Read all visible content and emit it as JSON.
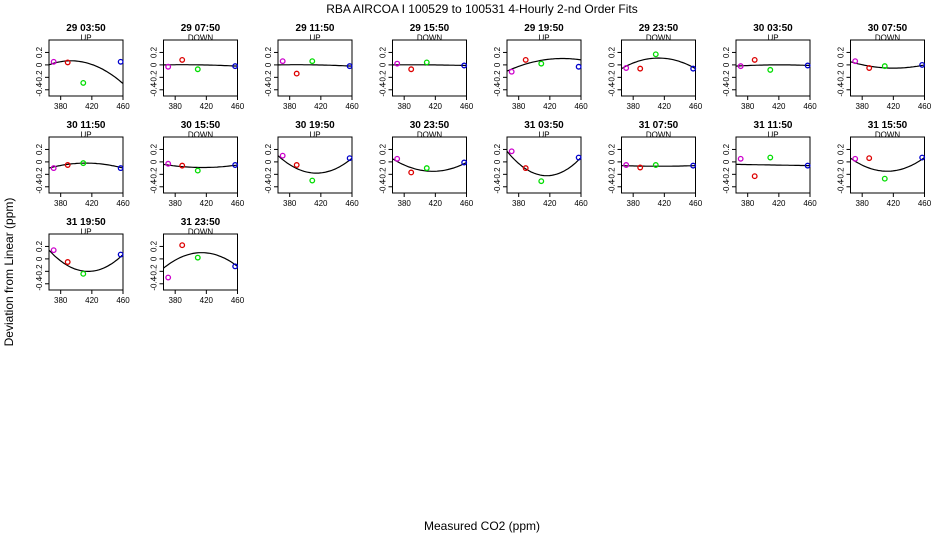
{
  "title": "RBA   AIRCOA I   100529 to 100531   4-Hourly 2-nd Order Fits",
  "xlabel": "Measured CO2 (ppm)",
  "ylabel": "Deviation from Linear (ppm)",
  "colors": {
    "purple": "#cc00cc",
    "red": "#dd0000",
    "green": "#00dd00",
    "blue": "#0000cc",
    "curve": "#000000"
  },
  "chart_data": {
    "type": "scatter",
    "xlim": [
      365,
      460
    ],
    "ylim": [
      -0.5,
      0.4
    ],
    "xticks": [
      380,
      420,
      460
    ],
    "yticks": [
      -0.4,
      -0.2,
      0,
      0.2
    ],
    "panels": [
      {
        "time": "29 03:50",
        "mode": "UP",
        "points": [
          {
            "x": 371,
            "y": 0.05
          },
          {
            "x": 389,
            "y": 0.04
          },
          {
            "x": 409,
            "y": -0.29
          },
          {
            "x": 457,
            "y": 0.05
          }
        ],
        "fit": [
          0.001,
          0.035,
          -0.3
        ]
      },
      {
        "time": "29 07:50",
        "mode": "DOWN",
        "points": [
          {
            "x": 371,
            "y": -0.03
          },
          {
            "x": 389,
            "y": 0.08
          },
          {
            "x": 409,
            "y": -0.07
          },
          {
            "x": 457,
            "y": -0.02
          }
        ],
        "fit": [
          0.0,
          0.0,
          -0.02
        ]
      },
      {
        "time": "29 11:50",
        "mode": "UP",
        "points": [
          {
            "x": 371,
            "y": 0.06
          },
          {
            "x": 389,
            "y": -0.14
          },
          {
            "x": 409,
            "y": 0.06
          },
          {
            "x": 457,
            "y": -0.02
          }
        ],
        "fit": [
          0.0,
          0.0,
          -0.02
        ]
      },
      {
        "time": "29 15:50",
        "mode": "DOWN",
        "points": [
          {
            "x": 371,
            "y": 0.02
          },
          {
            "x": 389,
            "y": -0.07
          },
          {
            "x": 409,
            "y": 0.04
          },
          {
            "x": 457,
            "y": -0.01
          }
        ],
        "fit": [
          0.0,
          0.0,
          -0.01
        ]
      },
      {
        "time": "29 19:50",
        "mode": "UP",
        "points": [
          {
            "x": 371,
            "y": -0.11
          },
          {
            "x": 389,
            "y": 0.08
          },
          {
            "x": 409,
            "y": 0.02
          },
          {
            "x": 457,
            "y": -0.03
          }
        ],
        "fit": [
          -0.1,
          0.08,
          0.08
        ]
      },
      {
        "time": "29 23:50",
        "mode": "DOWN",
        "points": [
          {
            "x": 371,
            "y": -0.05
          },
          {
            "x": 389,
            "y": -0.06
          },
          {
            "x": 409,
            "y": 0.17
          },
          {
            "x": 457,
            "y": -0.06
          }
        ],
        "fit": [
          -0.06,
          0.11,
          -0.06
        ]
      },
      {
        "time": "30 03:50",
        "mode": "UP",
        "points": [
          {
            "x": 371,
            "y": -0.02
          },
          {
            "x": 389,
            "y": 0.08
          },
          {
            "x": 409,
            "y": -0.08
          },
          {
            "x": 457,
            "y": -0.01
          }
        ],
        "fit": [
          -0.02,
          0.0,
          -0.01
        ]
      },
      {
        "time": "30 07:50",
        "mode": "DOWN",
        "points": [
          {
            "x": 371,
            "y": 0.06
          },
          {
            "x": 389,
            "y": -0.05
          },
          {
            "x": 409,
            "y": -0.02
          },
          {
            "x": 457,
            "y": 0.0
          }
        ],
        "fit": [
          0.05,
          -0.05,
          0.0
        ]
      },
      {
        "time": "30 11:50",
        "mode": "UP",
        "points": [
          {
            "x": 371,
            "y": -0.1
          },
          {
            "x": 389,
            "y": -0.05
          },
          {
            "x": 409,
            "y": -0.02
          },
          {
            "x": 457,
            "y": -0.1
          }
        ],
        "fit": [
          -0.1,
          -0.02,
          -0.1
        ]
      },
      {
        "time": "30 15:50",
        "mode": "DOWN",
        "points": [
          {
            "x": 371,
            "y": -0.03
          },
          {
            "x": 389,
            "y": -0.06
          },
          {
            "x": 409,
            "y": -0.14
          },
          {
            "x": 457,
            "y": -0.05
          }
        ],
        "fit": [
          -0.04,
          -0.09,
          -0.05
        ]
      },
      {
        "time": "30 19:50",
        "mode": "UP",
        "points": [
          {
            "x": 371,
            "y": 0.1
          },
          {
            "x": 389,
            "y": -0.05
          },
          {
            "x": 409,
            "y": -0.3
          },
          {
            "x": 457,
            "y": 0.06
          }
        ],
        "fit": [
          0.1,
          -0.18,
          0.06
        ]
      },
      {
        "time": "30 23:50",
        "mode": "DOWN",
        "points": [
          {
            "x": 371,
            "y": 0.05
          },
          {
            "x": 389,
            "y": -0.17
          },
          {
            "x": 409,
            "y": -0.1
          },
          {
            "x": 457,
            "y": -0.01
          }
        ],
        "fit": [
          0.05,
          -0.15,
          -0.01
        ]
      },
      {
        "time": "31 03:50",
        "mode": "UP",
        "points": [
          {
            "x": 371,
            "y": 0.17
          },
          {
            "x": 389,
            "y": -0.1
          },
          {
            "x": 409,
            "y": -0.31
          },
          {
            "x": 457,
            "y": 0.07
          }
        ],
        "fit": [
          0.17,
          -0.22,
          0.07
        ]
      },
      {
        "time": "31 07:50",
        "mode": "DOWN",
        "points": [
          {
            "x": 371,
            "y": -0.05
          },
          {
            "x": 389,
            "y": -0.09
          },
          {
            "x": 409,
            "y": -0.05
          },
          {
            "x": 457,
            "y": -0.06
          }
        ],
        "fit": [
          -0.06,
          -0.07,
          -0.06
        ]
      },
      {
        "time": "31 11:50",
        "mode": "UP",
        "points": [
          {
            "x": 371,
            "y": 0.05
          },
          {
            "x": 389,
            "y": -0.23
          },
          {
            "x": 409,
            "y": 0.07
          },
          {
            "x": 457,
            "y": -0.06
          }
        ],
        "fit": [
          -0.04,
          -0.05,
          -0.06
        ]
      },
      {
        "time": "31 15:50",
        "mode": "DOWN",
        "points": [
          {
            "x": 371,
            "y": 0.05
          },
          {
            "x": 389,
            "y": 0.06
          },
          {
            "x": 409,
            "y": -0.27
          },
          {
            "x": 457,
            "y": 0.07
          }
        ],
        "fit": [
          0.06,
          -0.15,
          0.07
        ]
      },
      {
        "time": "31 19:50",
        "mode": "UP",
        "points": [
          {
            "x": 371,
            "y": 0.14
          },
          {
            "x": 389,
            "y": -0.05
          },
          {
            "x": 409,
            "y": -0.24
          },
          {
            "x": 457,
            "y": 0.07
          }
        ],
        "fit": [
          0.14,
          -0.2,
          0.07
        ]
      },
      {
        "time": "31 23:50",
        "mode": "DOWN",
        "points": [
          {
            "x": 371,
            "y": -0.3
          },
          {
            "x": 389,
            "y": 0.22
          },
          {
            "x": 409,
            "y": 0.02
          },
          {
            "x": 457,
            "y": -0.12
          }
        ],
        "fit": [
          -0.15,
          0.1,
          -0.12
        ]
      }
    ]
  }
}
